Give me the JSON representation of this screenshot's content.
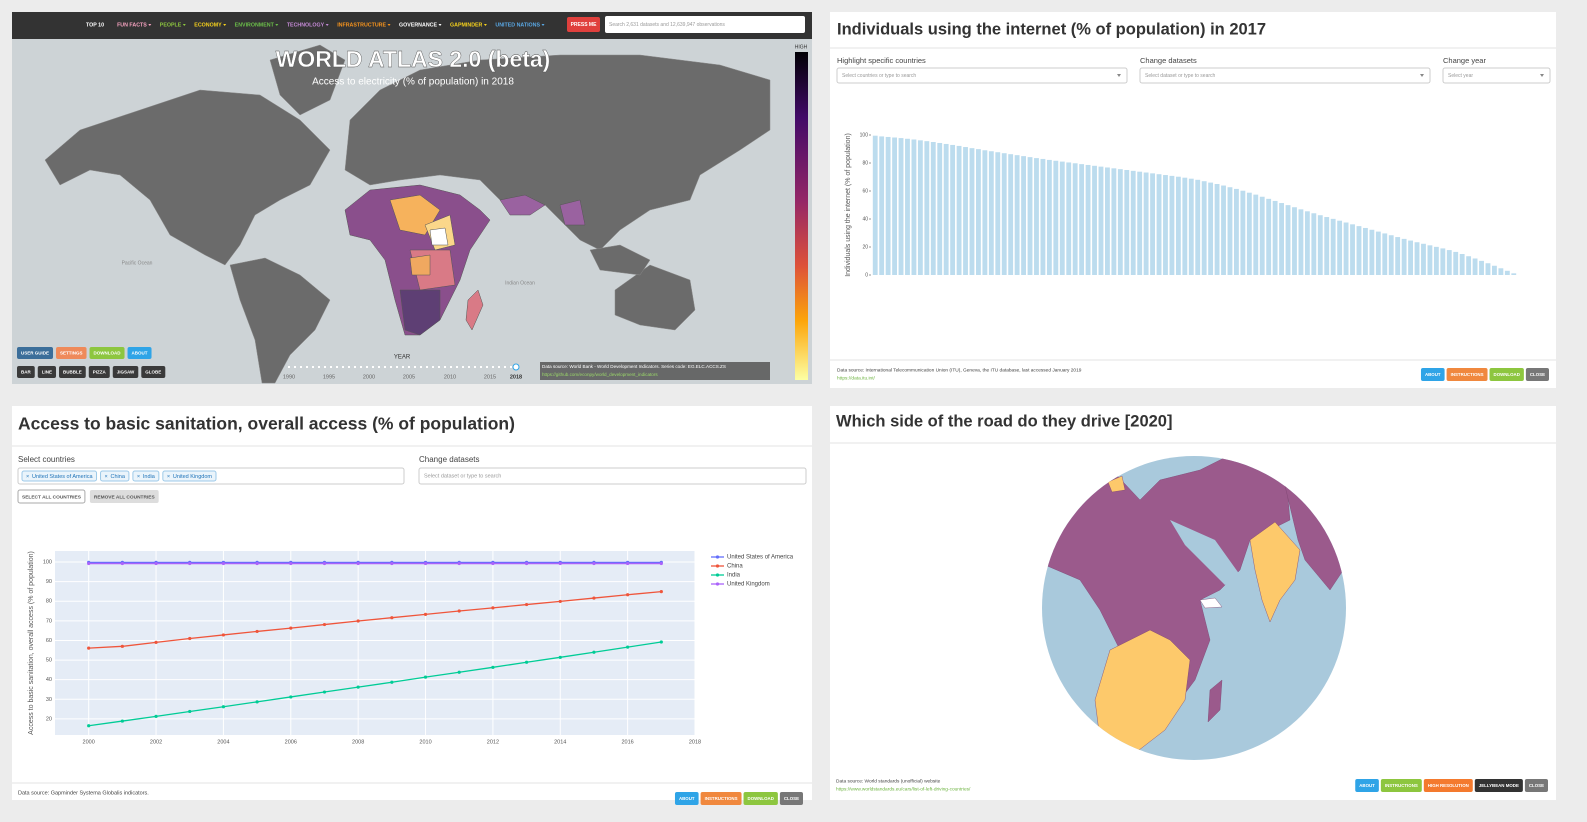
{
  "atlas": {
    "nav": [
      "TOP 10",
      "FUN FACTS",
      "PEOPLE",
      "ECONOMY",
      "ENVIRONMENT",
      "TECHNOLOGY",
      "INFRASTRUCTURE",
      "GOVERNANCE",
      "GAPMINDER",
      "UNITED NATIONS"
    ],
    "nav_button": "PRESS ME",
    "search_placeholder": "Search 2,631 datasets and 12,639,947 observations",
    "title": "WORLD ATLAS 2.0 (beta)",
    "subtitle": "Access to electricity (% of population) in 2018",
    "legend_high": "HIGH",
    "ocean_labels": [
      "Pacific Ocean",
      "Indian Ocean"
    ],
    "buttons_top": [
      "USER GUIDE",
      "SETTINGS",
      "DOWNLOAD",
      "ABOUT"
    ],
    "buttons_bottom": [
      "BAR",
      "LINE",
      "BUBBLE",
      "PIZZA",
      "JIGSAW",
      "GLOBE"
    ],
    "year_label": "YEAR",
    "years": [
      "1990",
      "1995",
      "2000",
      "2005",
      "2010",
      "2015",
      "2018"
    ],
    "source": "Data source: World Bank - World Development Indicators. Series code: EG.ELC.ACCS.ZS",
    "source_link": "https://github.com/econpy/world_development_indicators"
  },
  "internet": {
    "title": "Individuals using the internet (% of population) in 2017",
    "controls": [
      {
        "label": "Highlight specific countries",
        "placeholder": "Select countries or type to search"
      },
      {
        "label": "Change datasets",
        "placeholder": "Select dataset or type to search"
      },
      {
        "label": "Change year",
        "placeholder": "Select year"
      }
    ],
    "source": "Data source: International Telecommunication Union (ITU), Geneva, the ITU database, last accessed January 2019",
    "link": "https://data.itu.int/",
    "buttons": [
      "ABOUT",
      "INSTRUCTIONS",
      "DOWNLOAD",
      "CLOSE"
    ]
  },
  "sanitation": {
    "title": "Access to basic sanitation, overall access (% of population)",
    "select_label": "Select countries",
    "chips": [
      "United States of America",
      "China",
      "India",
      "United Kingdom"
    ],
    "datasets_label": "Change datasets",
    "datasets_placeholder": "Select dataset or type to search",
    "select_buttons": [
      "SELECT ALL COUNTRIES",
      "REMOVE ALL COUNTRIES"
    ],
    "source": "Data source: Gapminder Systema Globalis indicators.",
    "buttons": [
      "ABOUT",
      "INSTRUCTIONS",
      "DOWNLOAD",
      "CLOSE"
    ]
  },
  "roads": {
    "title": "Which side of the road do they drive [2020]",
    "source": "Data source: World standards (unofficial) website",
    "link": "https://www.worldstandards.eu/cars/list-of-left-driving-countries/",
    "buttons": [
      "ABOUT",
      "INSTRUCTIONS",
      "HIGH RESOLUTION",
      "JELLYBEAN MODE",
      "CLOSE"
    ]
  },
  "chart_data": [
    {
      "type": "bar",
      "ylabel": "Individuals using the internet (% of population)",
      "color": "#bcdcee",
      "ylim": [
        0,
        100
      ],
      "yticks": [
        0,
        20,
        40,
        60,
        80,
        100
      ],
      "categories": [
        null,
        null,
        null,
        null,
        null,
        null,
        null,
        null,
        null,
        null,
        null,
        null,
        null,
        null,
        null,
        null,
        null,
        null,
        null,
        null,
        null,
        null,
        null,
        null,
        null,
        null,
        null,
        null,
        null,
        null,
        null,
        null,
        null,
        null,
        null,
        null,
        null,
        null,
        null,
        null,
        null,
        null,
        null,
        null,
        null,
        null,
        null,
        null,
        null,
        null,
        null,
        null,
        null,
        null,
        null,
        null,
        null,
        null,
        null,
        null,
        null,
        null,
        null,
        null,
        null,
        null,
        null,
        null,
        null,
        null,
        null,
        null,
        null,
        null,
        null,
        null,
        null,
        null,
        null,
        null,
        null,
        null,
        null,
        null,
        null,
        null,
        null,
        null,
        null,
        null,
        null,
        null,
        null,
        null,
        null,
        null,
        null,
        null,
        null,
        null
      ],
      "values": [
        99.5,
        99.0,
        98.6,
        98.2,
        97.8,
        97.3,
        96.8,
        96.2,
        95.6,
        95.0,
        94.3,
        93.6,
        92.9,
        92.2,
        91.4,
        90.6,
        89.9,
        89.1,
        88.4,
        87.7,
        87.0,
        86.3,
        85.6,
        84.9,
        84.2,
        83.5,
        82.9,
        82.2,
        81.6,
        81.0,
        80.4,
        79.8,
        79.2,
        78.6,
        78.0,
        77.4,
        76.8,
        76.2,
        75.6,
        75.0,
        74.4,
        73.8,
        73.2,
        72.6,
        72.0,
        71.4,
        70.8,
        70.2,
        69.5,
        68.8,
        68.0,
        67.0,
        66.0,
        65.0,
        63.9,
        62.7,
        61.5,
        60.2,
        58.8,
        57.4,
        55.9,
        54.4,
        52.9,
        51.4,
        49.9,
        48.4,
        46.9,
        45.5,
        44.1,
        42.7,
        41.4,
        40.1,
        38.8,
        37.5,
        36.2,
        34.9,
        33.6,
        32.3,
        31.0,
        29.7,
        28.4,
        27.1,
        25.8,
        24.6,
        23.4,
        22.3,
        21.2,
        20.1,
        19.0,
        17.8,
        16.5,
        15.0,
        13.4,
        11.8,
        10.1,
        8.4,
        6.6,
        4.8,
        3.0,
        1.2
      ]
    },
    {
      "type": "line",
      "ylabel": "Access to basic sanitation, overall access (% of population)",
      "x": [
        2000,
        2001,
        2002,
        2003,
        2004,
        2005,
        2006,
        2007,
        2008,
        2009,
        2010,
        2011,
        2012,
        2013,
        2014,
        2015,
        2016,
        2017
      ],
      "xlim": [
        1999,
        2018
      ],
      "xticks": [
        2000,
        2002,
        2004,
        2006,
        2008,
        2010,
        2012,
        2014,
        2016,
        2018
      ],
      "ylim": [
        11.8,
        105.6
      ],
      "yticks": [
        20,
        30,
        40,
        50,
        60,
        70,
        80,
        90,
        100
      ],
      "grid": true,
      "legend": "right",
      "series": [
        {
          "name": "United States of America",
          "color": "#636efa",
          "values": [
            99.8,
            99.8,
            99.8,
            99.8,
            99.8,
            99.8,
            99.8,
            99.8,
            99.8,
            99.8,
            99.8,
            99.8,
            99.8,
            99.8,
            99.8,
            99.8,
            99.8,
            99.8
          ]
        },
        {
          "name": "China",
          "color": "#ef553b",
          "values": [
            56.1,
            57.0,
            59.0,
            61.0,
            62.8,
            64.6,
            66.3,
            68.1,
            69.9,
            71.6,
            73.3,
            75.0,
            76.6,
            78.3,
            79.9,
            81.6,
            83.3,
            84.9
          ]
        },
        {
          "name": "India",
          "color": "#00cc96",
          "values": [
            16.5,
            18.9,
            21.3,
            23.8,
            26.2,
            28.7,
            31.2,
            33.7,
            36.2,
            38.7,
            41.3,
            43.8,
            46.3,
            48.9,
            51.4,
            54.0,
            56.6,
            59.2
          ]
        },
        {
          "name": "United Kingdom",
          "color": "#ab63fa",
          "values": [
            99.2,
            99.2,
            99.2,
            99.2,
            99.2,
            99.2,
            99.2,
            99.2,
            99.2,
            99.2,
            99.2,
            99.2,
            99.2,
            99.2,
            99.2,
            99.2,
            99.2,
            99.2
          ]
        }
      ]
    }
  ]
}
